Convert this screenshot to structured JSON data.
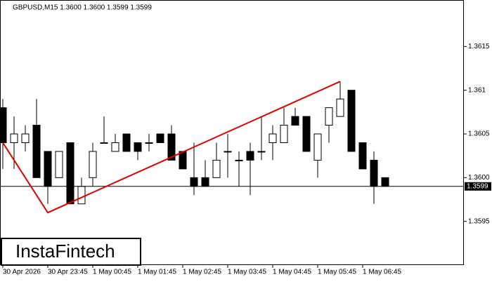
{
  "chart_data": {
    "type": "candlestick",
    "title": "GBPUSD,M15  1.3600 1.3600 1.3599 1.3599",
    "logo": "InstaFintech",
    "categories": [
      "30 Apr 2026",
      null,
      null,
      null,
      "30 Apr 23:45",
      null,
      null,
      null,
      "1 May 00:45",
      null,
      null,
      null,
      "1 May 01:45",
      null,
      null,
      null,
      "1 May 02:45",
      null,
      null,
      null,
      "1 May 03:45",
      null,
      null,
      null,
      "1 May 04:45",
      null,
      null,
      null,
      "1 May 05:45",
      null,
      null,
      null,
      "1 May 06:45",
      null,
      null
    ],
    "open": [
      1.3608,
      1.3604,
      1.3604,
      1.3606,
      1.3603,
      1.36,
      1.3604,
      1.3597,
      1.36,
      1.3604,
      1.3603,
      1.3605,
      1.3604,
      1.3604,
      1.3605,
      1.3605,
      1.3603,
      1.36,
      1.36,
      1.36,
      1.3603,
      1.3602,
      1.3603,
      1.3603,
      1.3604,
      1.3604,
      1.3607,
      1.3607,
      1.3602,
      1.3606,
      1.3607,
      1.361,
      1.3604,
      1.3602,
      1.36
    ],
    "high": [
      1.3609,
      1.3607,
      1.3606,
      1.3609,
      1.3603,
      1.3603,
      1.3604,
      1.36,
      1.3604,
      1.3607,
      1.3605,
      1.3605,
      1.3604,
      1.3605,
      1.3605,
      1.3606,
      1.3603,
      1.3604,
      1.3602,
      1.3604,
      1.3605,
      1.3603,
      1.3604,
      1.3607,
      1.3606,
      1.3608,
      1.3608,
      1.3607,
      1.3605,
      1.3608,
      1.3611,
      1.361,
      1.3604,
      1.3603,
      1.36
    ],
    "low": [
      1.3601,
      1.3601,
      1.3603,
      1.36,
      1.3597,
      1.36,
      1.3597,
      1.3597,
      1.3599,
      1.3604,
      1.3603,
      1.3603,
      1.3602,
      1.3603,
      1.3604,
      1.3602,
      1.3601,
      1.3598,
      1.3599,
      1.36,
      1.36,
      1.3599,
      1.3598,
      1.3602,
      1.3602,
      1.3604,
      1.3606,
      1.3603,
      1.36,
      1.3604,
      1.3607,
      1.3603,
      1.3601,
      1.3597,
      1.3599
    ],
    "close": [
      1.3604,
      1.3605,
      1.3605,
      1.36,
      1.3599,
      1.3603,
      1.3597,
      1.3599,
      1.3603,
      1.3604,
      1.3604,
      1.3603,
      1.3603,
      1.3604,
      1.3604,
      1.3602,
      1.3601,
      1.3599,
      1.3599,
      1.3602,
      1.3603,
      1.3602,
      1.3602,
      1.3603,
      1.3605,
      1.3606,
      1.3606,
      1.3603,
      1.3605,
      1.3608,
      1.3609,
      1.3603,
      1.3601,
      1.3599,
      1.3599
    ],
    "pattern": {
      "color": "#e00000",
      "x": [
        0,
        4,
        30
      ],
      "values": [
        1.3604,
        1.3596,
        1.3611
      ]
    },
    "last_price": 1.3599,
    "ylim": [
      1.359,
      1.362
    ],
    "yticks": [
      1.3595,
      {
        "value": 1.36,
        "label": "1.3600"
      },
      1.3605,
      1.361,
      1.3615
    ]
  }
}
